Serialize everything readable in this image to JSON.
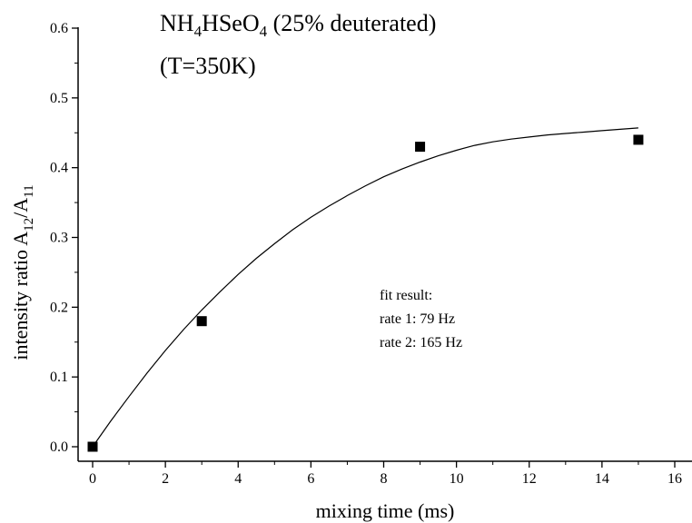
{
  "chart_data": {
    "type": "scatter",
    "title_line1": {
      "parts": [
        {
          "text": "NH",
          "sub": false
        },
        {
          "text": "4",
          "sub": true
        },
        {
          "text": "HSeO",
          "sub": false
        },
        {
          "text": "4",
          "sub": true
        },
        {
          "text": " (25% deuterated)",
          "sub": false
        }
      ]
    },
    "title_line2": "(T=350K)",
    "xlabel": "mixing time (ms)",
    "ylabel": {
      "parts": [
        {
          "text": "intensity ratio A",
          "sub": false
        },
        {
          "text": "12",
          "sub": true
        },
        {
          "text": "/A",
          "sub": false
        },
        {
          "text": "11",
          "sub": true
        }
      ]
    },
    "xlim": [
      -0.5,
      16.5
    ],
    "ylim": [
      -0.01,
      0.6
    ],
    "xticks": [
      0,
      2,
      4,
      6,
      8,
      10,
      12,
      14,
      16
    ],
    "xtick_labels": [
      "0",
      "2",
      "4",
      "6",
      "8",
      "10",
      "12",
      "14",
      "16"
    ],
    "yticks": [
      0.0,
      0.1,
      0.2,
      0.3,
      0.4,
      0.5,
      0.6
    ],
    "ytick_labels": [
      "0.0",
      "0.1",
      "0.2",
      "0.3",
      "0.4",
      "0.5",
      "0.6"
    ],
    "points": [
      {
        "x": 0,
        "y": 0.0
      },
      {
        "x": 3,
        "y": 0.18
      },
      {
        "x": 9,
        "y": 0.43
      },
      {
        "x": 15,
        "y": 0.44
      }
    ],
    "fit_curve": {
      "x": [
        0,
        0.5,
        1,
        1.5,
        2,
        2.5,
        3,
        3.5,
        4,
        4.5,
        5,
        5.5,
        6,
        6.5,
        7,
        7.5,
        8,
        8.5,
        9,
        9.5,
        10,
        10.5,
        11,
        11.5,
        12,
        12.5,
        13,
        13.5,
        14,
        14.5,
        15
      ],
      "y": [
        0.0,
        0.037,
        0.072,
        0.106,
        0.138,
        0.168,
        0.196,
        0.222,
        0.247,
        0.27,
        0.291,
        0.311,
        0.329,
        0.345,
        0.36,
        0.374,
        0.387,
        0.398,
        0.408,
        0.417,
        0.425,
        0.432,
        0.437,
        0.441,
        0.444,
        0.447,
        0.449,
        0.451,
        0.453,
        0.455,
        0.457
      ]
    },
    "annotation": [
      "fit result:",
      "rate 1:  79 Hz",
      "rate 2: 165 Hz"
    ],
    "grid": false
  }
}
